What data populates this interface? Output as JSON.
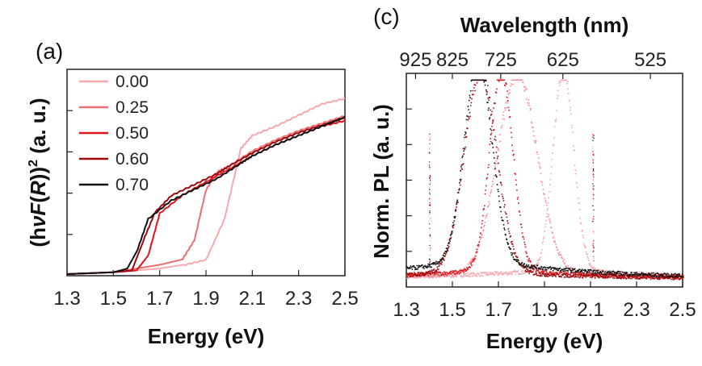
{
  "chart_data": [
    {
      "panel": "(a)",
      "type": "line",
      "xlabel": "Energy (eV)",
      "ylabel": "(hνF(R))² (a. u.)",
      "ylabel_parts": {
        "open": "(h",
        "nu": "ν",
        "F": "F",
        "lp": "(",
        "R": "R",
        "rp": "))",
        "sup": "2",
        "unit": " (a. u.)"
      },
      "xlim": [
        1.3,
        2.5
      ],
      "ylim": [
        0,
        1
      ],
      "xticks": [
        "1.3",
        "1.5",
        "1.7",
        "1.9",
        "2.1",
        "2.3",
        "2.5"
      ],
      "legend_position": "top-left",
      "series": [
        {
          "name": "0.00",
          "color": "#f7a8ad",
          "points": [
            [
              1.3,
              0.0
            ],
            [
              1.5,
              0.01
            ],
            [
              1.7,
              0.03
            ],
            [
              1.8,
              0.05
            ],
            [
              1.9,
              0.08
            ],
            [
              1.98,
              0.3
            ],
            [
              2.05,
              0.68
            ],
            [
              2.1,
              0.75
            ],
            [
              2.2,
              0.8
            ],
            [
              2.3,
              0.86
            ],
            [
              2.4,
              0.92
            ],
            [
              2.5,
              0.95
            ]
          ]
        },
        {
          "name": "0.25",
          "color": "#ee6e73",
          "points": [
            [
              1.3,
              0.0
            ],
            [
              1.5,
              0.01
            ],
            [
              1.7,
              0.05
            ],
            [
              1.8,
              0.08
            ],
            [
              1.85,
              0.18
            ],
            [
              1.9,
              0.45
            ],
            [
              1.95,
              0.55
            ],
            [
              2.0,
              0.58
            ],
            [
              2.1,
              0.66
            ],
            [
              2.2,
              0.72
            ],
            [
              2.3,
              0.77
            ],
            [
              2.4,
              0.81
            ],
            [
              2.5,
              0.85
            ]
          ]
        },
        {
          "name": "0.50",
          "color": "#e2151b",
          "points": [
            [
              1.3,
              0.0
            ],
            [
              1.5,
              0.01
            ],
            [
              1.6,
              0.02
            ],
            [
              1.65,
              0.1
            ],
            [
              1.7,
              0.33
            ],
            [
              1.8,
              0.43
            ],
            [
              1.9,
              0.5
            ],
            [
              2.0,
              0.57
            ],
            [
              2.1,
              0.64
            ],
            [
              2.2,
              0.7
            ],
            [
              2.3,
              0.75
            ],
            [
              2.4,
              0.8
            ],
            [
              2.5,
              0.83
            ]
          ]
        },
        {
          "name": "0.60",
          "color": "#9c0a0f",
          "points": [
            [
              1.3,
              0.0
            ],
            [
              1.5,
              0.01
            ],
            [
              1.58,
              0.02
            ],
            [
              1.63,
              0.18
            ],
            [
              1.68,
              0.33
            ],
            [
              1.75,
              0.42
            ],
            [
              1.85,
              0.48
            ],
            [
              1.95,
              0.54
            ],
            [
              2.0,
              0.58
            ],
            [
              2.1,
              0.65
            ],
            [
              2.2,
              0.71
            ],
            [
              2.3,
              0.76
            ],
            [
              2.4,
              0.8
            ],
            [
              2.5,
              0.84
            ]
          ]
        },
        {
          "name": "0.70",
          "color": "#111111",
          "points": [
            [
              1.3,
              0.0
            ],
            [
              1.5,
              0.01
            ],
            [
              1.56,
              0.03
            ],
            [
              1.6,
              0.12
            ],
            [
              1.65,
              0.3
            ],
            [
              1.75,
              0.4
            ],
            [
              1.85,
              0.46
            ],
            [
              1.95,
              0.52
            ],
            [
              2.05,
              0.6
            ],
            [
              2.1,
              0.64
            ],
            [
              2.2,
              0.7
            ],
            [
              2.3,
              0.75
            ],
            [
              2.4,
              0.8
            ],
            [
              2.5,
              0.85
            ]
          ]
        }
      ]
    },
    {
      "panel": "(c)",
      "type": "scatter",
      "xlabel": "Energy (eV)",
      "ylabel": "Norm. PL (a. u.)",
      "top_xlabel": "Wavelength (nm)",
      "top_xticks": [
        "925",
        "825",
        "725",
        "625",
        "525"
      ],
      "top_xtick_energies": [
        1.34,
        1.5,
        1.71,
        1.98,
        2.36
      ],
      "xlim": [
        1.3,
        2.5
      ],
      "ylim": [
        0,
        1
      ],
      "xticks": [
        "1.3",
        "1.5",
        "1.7",
        "1.9",
        "2.1",
        "2.3",
        "2.5"
      ],
      "series": [
        {
          "name": "0.00",
          "color": "#f7a8ad",
          "peak": 1.98,
          "width": 0.045,
          "tail": 0.05
        },
        {
          "name": "0.25",
          "color": "#f59096",
          "peak": 1.78,
          "width": 0.085,
          "tail": 0.04
        },
        {
          "name": "0.50",
          "color": "#e2151b",
          "peak": 1.71,
          "width": 0.05,
          "tail": 0.05
        },
        {
          "name": "0.60",
          "color": "#9c0a0f",
          "peak": 1.62,
          "width": 0.07,
          "tail": 0.04
        },
        {
          "name": "0.70",
          "color": "#111111",
          "peak": 1.61,
          "width": 0.06,
          "tail": 0.1
        }
      ]
    }
  ]
}
